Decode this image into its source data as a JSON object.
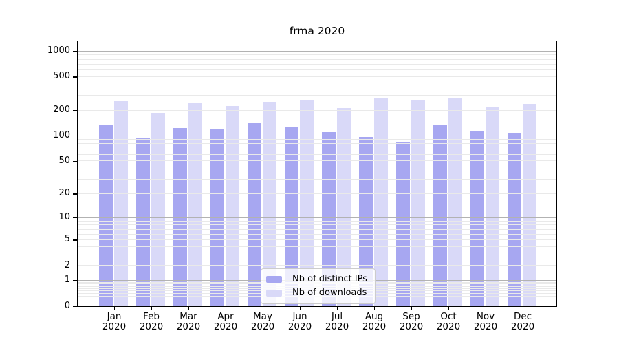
{
  "chart_data": {
    "type": "bar",
    "title": "frma 2020",
    "categories": [
      "Jan",
      "Feb",
      "Mar",
      "Apr",
      "May",
      "Jun",
      "Jul",
      "Aug",
      "Sep",
      "Oct",
      "Nov",
      "Dec"
    ],
    "year_label": "2020",
    "series": [
      {
        "name": "Nb of distinct IPs",
        "color": "#a7a7f1",
        "values": [
          136,
          95,
          124,
          119,
          142,
          128,
          111,
          97,
          86,
          135,
          115,
          108
        ]
      },
      {
        "name": "Nb of downloads",
        "color": "#d9d9f8",
        "values": [
          257,
          187,
          243,
          226,
          252,
          270,
          216,
          280,
          263,
          282,
          224,
          240
        ]
      }
    ],
    "ylabel": "",
    "xlabel": "",
    "y_axis": {
      "scale": "symlog: y proportional to log10(value+1)",
      "tick_labels": [
        1000,
        500,
        200,
        100,
        50,
        20,
        10,
        5,
        2,
        1,
        0
      ],
      "major_gridlines": [
        1,
        10,
        100,
        1000
      ],
      "range_top": 1330
    },
    "grid": "on",
    "legend_position": "bottom-center",
    "colors": {
      "major_grid": "#b2b2b2",
      "minor_grid": "#e9e9e9",
      "axis_frame": "#000000",
      "background": "#ffffff"
    }
  }
}
